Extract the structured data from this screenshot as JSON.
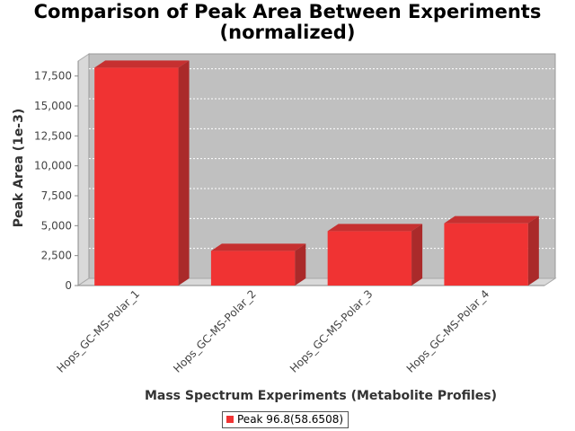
{
  "chart_data": {
    "type": "bar",
    "title": "Comparison of Peak Area Between Experiments",
    "subtitle": "(normalized)",
    "xlabel": "Mass Spectrum Experiments (Metabolite Profiles)",
    "ylabel": "Peak Area (1e-3)",
    "categories": [
      "Hops_GC-MS-Polar_1",
      "Hops_GC-MS-Polar_2",
      "Hops_GC-MS-Polar_3",
      "Hops_GC-MS-Polar_4"
    ],
    "series": [
      {
        "name": "Peak 96.8(58.6508)",
        "values": [
          18200,
          2900,
          4550,
          5200
        ],
        "color": "#f03333"
      }
    ],
    "ylim": [
      0,
      18750
    ],
    "yticks": [
      0,
      2500,
      5000,
      7500,
      10000,
      12500,
      15000,
      17500
    ],
    "ytick_labels": [
      "0",
      "2,500",
      "5,000",
      "7,500",
      "10,000",
      "12,500",
      "15,000",
      "17,500"
    ],
    "grid": true,
    "legend_position": "bottom-center",
    "plot_background": "#c0c0c0",
    "bar_color": "#f03333",
    "three_d": true
  }
}
